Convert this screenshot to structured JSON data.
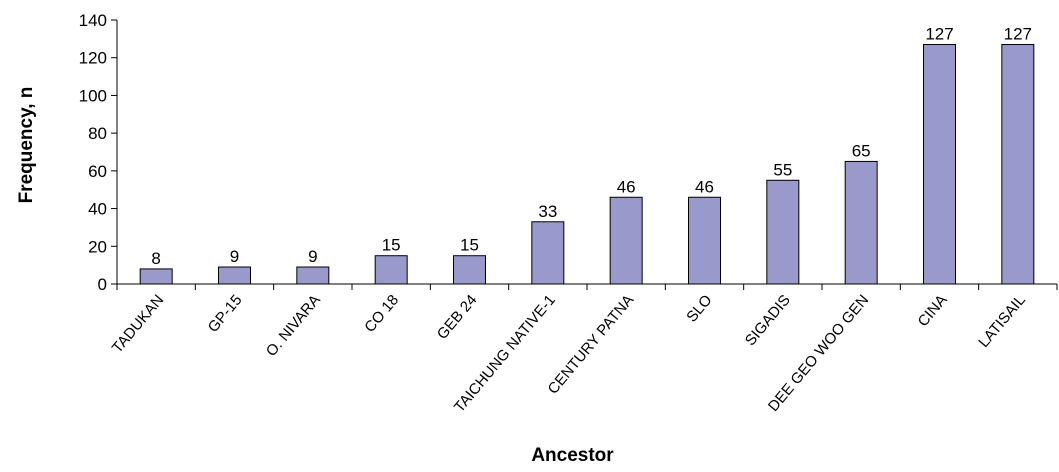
{
  "chart_data": {
    "type": "bar",
    "title": "",
    "xlabel": "Ancestor",
    "ylabel": "Frequency, n",
    "ylim": [
      0,
      140
    ],
    "yticks": [
      0,
      20,
      40,
      60,
      80,
      100,
      120,
      140
    ],
    "grid": false,
    "categories": [
      "TADUKAN",
      "GP-15",
      "O. NIVARA",
      "CO 18",
      "GEB 24",
      "TAICHUNG NATIVE-1",
      "CENTURY PATNA",
      "SLO",
      "SIGADIS",
      "DEE GEO WOO GEN",
      "CINA",
      "LATISAIL"
    ],
    "values": [
      8,
      9,
      9,
      15,
      15,
      33,
      46,
      46,
      55,
      65,
      127,
      127
    ],
    "bar_color": "#9999cc",
    "bar_edge_color": "#000000"
  }
}
